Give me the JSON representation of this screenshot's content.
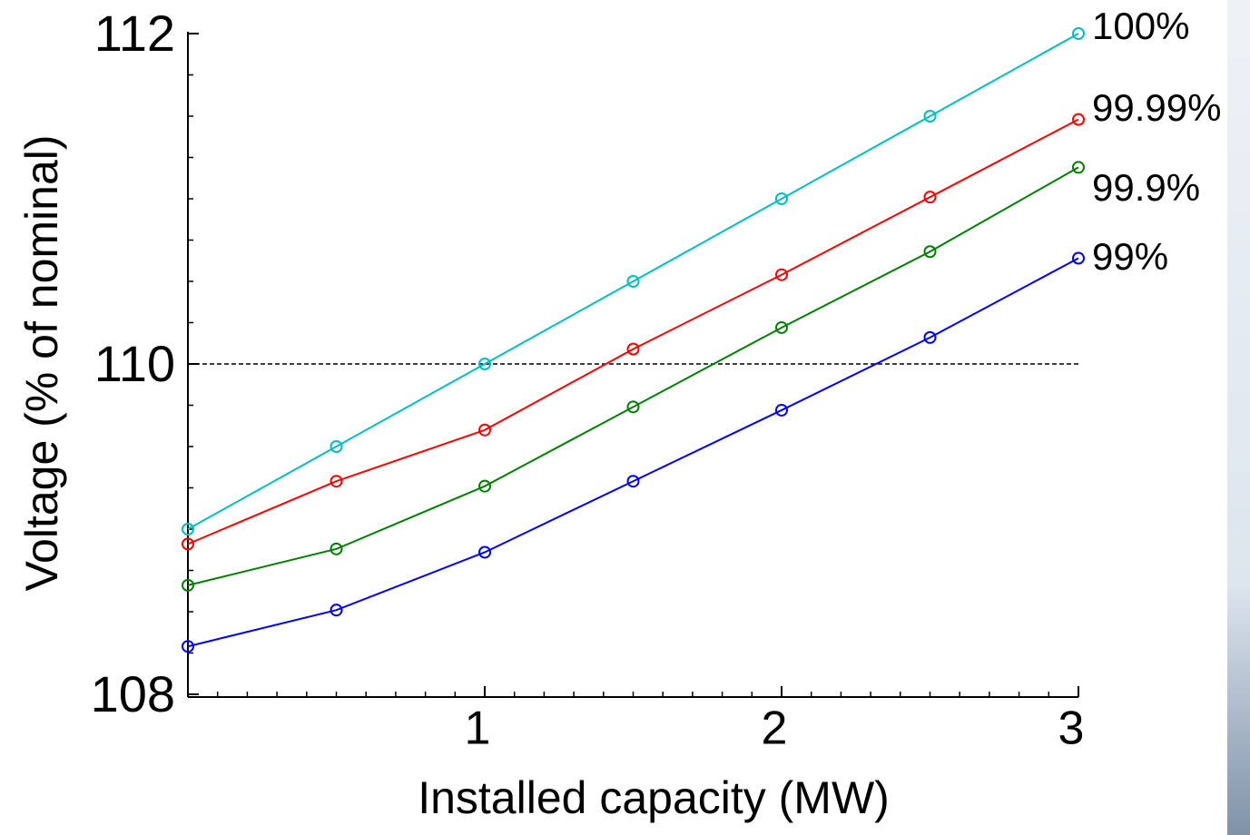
{
  "chart_data": {
    "type": "line",
    "x_label": "Installed capacity (MW)",
    "y_label": "Voltage (% of  nominal)",
    "x": [
      0,
      0.5,
      1,
      1.5,
      2,
      2.5,
      3
    ],
    "series": [
      {
        "name": "100%",
        "color": "#00bfbf",
        "values": [
          109.0,
          109.5,
          110.0,
          110.5,
          111.0,
          111.5,
          112.0
        ]
      },
      {
        "name": "99.99%",
        "color": "#ff0000",
        "values": [
          108.91,
          109.29,
          109.6,
          110.09,
          110.54,
          111.01,
          111.48
        ]
      },
      {
        "name": "99.9%",
        "color": "#008000",
        "values": [
          108.66,
          108.88,
          109.26,
          109.74,
          110.22,
          110.68,
          111.19
        ]
      },
      {
        "name": "99%",
        "color": "#0000ff",
        "values": [
          108.29,
          108.51,
          108.86,
          109.29,
          109.72,
          110.16,
          110.64
        ]
      }
    ],
    "xlim": [
      0,
      3
    ],
    "xticks": [
      1,
      2,
      3
    ],
    "xminor": 0.1,
    "ylim": [
      108,
      112
    ],
    "yticks": [
      108,
      110,
      112
    ],
    "yminor": 0.25,
    "reference_line": 110,
    "markers": "open-circle"
  }
}
